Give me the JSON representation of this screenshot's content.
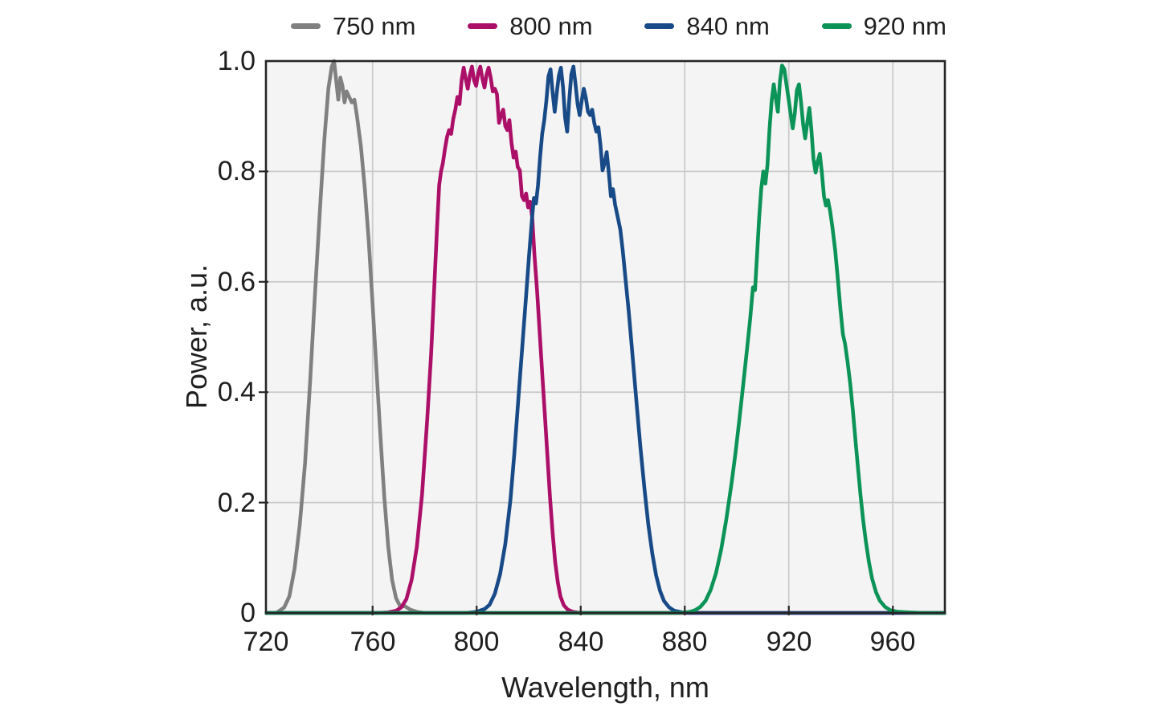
{
  "figure": {
    "background": "#ffffff",
    "text_color": "#1f1f1f"
  },
  "chart_data": {
    "type": "line",
    "title": "",
    "xlabel": "Wavelength, nm",
    "ylabel": "Power, a.u.",
    "xlim": [
      719,
      980
    ],
    "ylim": [
      0,
      1.0
    ],
    "x_ticks": [
      720,
      760,
      800,
      840,
      880,
      920,
      960
    ],
    "x_tick_labels": [
      "720",
      "760",
      "800",
      "840",
      "880",
      "920",
      "960"
    ],
    "y_ticks": [
      1.0,
      0.8,
      0.6,
      0.4,
      0.2,
      0
    ],
    "y_tick_labels": [
      "1.0",
      "0.8",
      "0.6",
      "0.4",
      "0.2",
      "0"
    ],
    "grid": true,
    "legend_position": "top",
    "plot_bg": "#f4f4f4",
    "grid_color": "#cbcbcb",
    "frame_color": "#262626",
    "series": [
      {
        "name": "750 nm",
        "color": "#808080",
        "points": [
          [
            719,
            0
          ],
          [
            723,
            0
          ],
          [
            726,
            0.01
          ],
          [
            728,
            0.03
          ],
          [
            730,
            0.08
          ],
          [
            732,
            0.16
          ],
          [
            734,
            0.27
          ],
          [
            736,
            0.42
          ],
          [
            738,
            0.59
          ],
          [
            740,
            0.75
          ],
          [
            741.5,
            0.86
          ],
          [
            743,
            0.95
          ],
          [
            744.3,
            0.99
          ],
          [
            745.2,
            1.0
          ],
          [
            746,
            0.965
          ],
          [
            746.8,
            0.93
          ],
          [
            747.6,
            0.97
          ],
          [
            748.4,
            0.955
          ],
          [
            749.2,
            0.925
          ],
          [
            750,
            0.945
          ],
          [
            751,
            0.935
          ],
          [
            752,
            0.925
          ],
          [
            753,
            0.93
          ],
          [
            754,
            0.9
          ],
          [
            755.5,
            0.845
          ],
          [
            757,
            0.77
          ],
          [
            758.5,
            0.675
          ],
          [
            760,
            0.56
          ],
          [
            761.5,
            0.44
          ],
          [
            763,
            0.32
          ],
          [
            764.5,
            0.21
          ],
          [
            766,
            0.12
          ],
          [
            767.5,
            0.06
          ],
          [
            769,
            0.027
          ],
          [
            770.5,
            0.013
          ],
          [
            772.5,
            0.012
          ],
          [
            774.5,
            0.006
          ],
          [
            777,
            0.002
          ],
          [
            780,
            0
          ],
          [
            820,
            0
          ],
          [
            860,
            0
          ],
          [
            900,
            0
          ],
          [
            940,
            0
          ],
          [
            980,
            0
          ]
        ]
      },
      {
        "name": "800 nm",
        "color": "#ab0f68",
        "points": [
          [
            719,
            0
          ],
          [
            762,
            0
          ],
          [
            766,
            0.001
          ],
          [
            769,
            0.004
          ],
          [
            771,
            0.01
          ],
          [
            773,
            0.025
          ],
          [
            775,
            0.06
          ],
          [
            777,
            0.12
          ],
          [
            779,
            0.215
          ],
          [
            781,
            0.35
          ],
          [
            782.5,
            0.47
          ],
          [
            783.8,
            0.6
          ],
          [
            784.8,
            0.7
          ],
          [
            785.6,
            0.775
          ],
          [
            786.3,
            0.8
          ],
          [
            787,
            0.815
          ],
          [
            787.8,
            0.84
          ],
          [
            788.6,
            0.862
          ],
          [
            789.4,
            0.875
          ],
          [
            790.2,
            0.868
          ],
          [
            791,
            0.895
          ],
          [
            791.8,
            0.912
          ],
          [
            792.6,
            0.935
          ],
          [
            793.4,
            0.922
          ],
          [
            794.2,
            0.965
          ],
          [
            795,
            0.988
          ],
          [
            795.8,
            0.968
          ],
          [
            796.6,
            0.95
          ],
          [
            797.4,
            0.975
          ],
          [
            798.2,
            0.99
          ],
          [
            799,
            0.965
          ],
          [
            799.8,
            0.955
          ],
          [
            800.6,
            0.978
          ],
          [
            801.4,
            0.99
          ],
          [
            802.2,
            0.968
          ],
          [
            803,
            0.952
          ],
          [
            803.8,
            0.975
          ],
          [
            804.6,
            0.988
          ],
          [
            805.4,
            0.97
          ],
          [
            806.2,
            0.945
          ],
          [
            807,
            0.95
          ],
          [
            807.8,
            0.94
          ],
          [
            808.6,
            0.888
          ],
          [
            809.4,
            0.902
          ],
          [
            810.2,
            0.912
          ],
          [
            811,
            0.882
          ],
          [
            811.8,
            0.875
          ],
          [
            812.6,
            0.893
          ],
          [
            813.4,
            0.852
          ],
          [
            814.2,
            0.825
          ],
          [
            815,
            0.836
          ],
          [
            815.8,
            0.808
          ],
          [
            816.6,
            0.802
          ],
          [
            817.4,
            0.755
          ],
          [
            818.2,
            0.748
          ],
          [
            819,
            0.76
          ],
          [
            819.8,
            0.735
          ],
          [
            820.6,
            0.745
          ],
          [
            821.4,
            0.715
          ],
          [
            822.2,
            0.65
          ],
          [
            823.2,
            0.585
          ],
          [
            824.2,
            0.51
          ],
          [
            825.2,
            0.435
          ],
          [
            826.2,
            0.36
          ],
          [
            827.2,
            0.285
          ],
          [
            828.2,
            0.21
          ],
          [
            829.2,
            0.145
          ],
          [
            830.2,
            0.092
          ],
          [
            831.2,
            0.055
          ],
          [
            832.2,
            0.03
          ],
          [
            833.5,
            0.014
          ],
          [
            835,
            0.006
          ],
          [
            837,
            0.002
          ],
          [
            840,
            0
          ],
          [
            880,
            0
          ],
          [
            920,
            0
          ],
          [
            980,
            0
          ]
        ]
      },
      {
        "name": "840 nm",
        "color": "#184a87",
        "points": [
          [
            719,
            0
          ],
          [
            796,
            0
          ],
          [
            800,
            0.002
          ],
          [
            803,
            0.007
          ],
          [
            805,
            0.015
          ],
          [
            807,
            0.035
          ],
          [
            809,
            0.07
          ],
          [
            811,
            0.125
          ],
          [
            813,
            0.205
          ],
          [
            814.5,
            0.29
          ],
          [
            816,
            0.385
          ],
          [
            817.5,
            0.48
          ],
          [
            819,
            0.575
          ],
          [
            820.2,
            0.65
          ],
          [
            821.2,
            0.71
          ],
          [
            822,
            0.752
          ],
          [
            822.8,
            0.742
          ],
          [
            823.6,
            0.775
          ],
          [
            824.4,
            0.826
          ],
          [
            825.2,
            0.868
          ],
          [
            826,
            0.893
          ],
          [
            826.8,
            0.928
          ],
          [
            827.6,
            0.972
          ],
          [
            828.4,
            0.985
          ],
          [
            829.2,
            0.943
          ],
          [
            830,
            0.908
          ],
          [
            830.8,
            0.943
          ],
          [
            831.6,
            0.973
          ],
          [
            832.4,
            0.988
          ],
          [
            833.2,
            0.953
          ],
          [
            834,
            0.898
          ],
          [
            834.8,
            0.872
          ],
          [
            835.6,
            0.93
          ],
          [
            836.4,
            0.976
          ],
          [
            837.2,
            0.99
          ],
          [
            838,
            0.958
          ],
          [
            838.8,
            0.922
          ],
          [
            839.6,
            0.902
          ],
          [
            840.4,
            0.928
          ],
          [
            841.2,
            0.95
          ],
          [
            842,
            0.933
          ],
          [
            842.8,
            0.908
          ],
          [
            843.6,
            0.902
          ],
          [
            844.4,
            0.912
          ],
          [
            845.2,
            0.888
          ],
          [
            846,
            0.872
          ],
          [
            846.8,
            0.88
          ],
          [
            847.6,
            0.848
          ],
          [
            848.4,
            0.802
          ],
          [
            849.2,
            0.815
          ],
          [
            850,
            0.835
          ],
          [
            850.8,
            0.798
          ],
          [
            851.6,
            0.755
          ],
          [
            852.4,
            0.768
          ],
          [
            853.2,
            0.74
          ],
          [
            854.2,
            0.718
          ],
          [
            855.2,
            0.695
          ],
          [
            856.2,
            0.655
          ],
          [
            857.2,
            0.607
          ],
          [
            858.5,
            0.545
          ],
          [
            860,
            0.462
          ],
          [
            861.5,
            0.378
          ],
          [
            863,
            0.298
          ],
          [
            864.5,
            0.225
          ],
          [
            866,
            0.16
          ],
          [
            867.5,
            0.108
          ],
          [
            869,
            0.068
          ],
          [
            870.5,
            0.04
          ],
          [
            872,
            0.022
          ],
          [
            874,
            0.01
          ],
          [
            876,
            0.004
          ],
          [
            879,
            0.001
          ],
          [
            882,
            0
          ],
          [
            930,
            0
          ],
          [
            980,
            0
          ]
        ]
      },
      {
        "name": "920 nm",
        "color": "#0c9357",
        "points": [
          [
            719,
            0
          ],
          [
            780,
            0
          ],
          [
            830,
            0
          ],
          [
            878,
            0
          ],
          [
            882,
            0.002
          ],
          [
            884,
            0.005
          ],
          [
            886,
            0.011
          ],
          [
            888,
            0.022
          ],
          [
            890,
            0.042
          ],
          [
            892,
            0.072
          ],
          [
            894,
            0.115
          ],
          [
            896,
            0.17
          ],
          [
            898,
            0.235
          ],
          [
            899.5,
            0.29
          ],
          [
            901,
            0.35
          ],
          [
            902.5,
            0.415
          ],
          [
            904,
            0.48
          ],
          [
            905.2,
            0.535
          ],
          [
            906.2,
            0.59
          ],
          [
            907,
            0.585
          ],
          [
            907.8,
            0.648
          ],
          [
            908.6,
            0.715
          ],
          [
            909.4,
            0.768
          ],
          [
            910.2,
            0.8
          ],
          [
            911,
            0.778
          ],
          [
            911.8,
            0.812
          ],
          [
            912.6,
            0.878
          ],
          [
            913.4,
            0.928
          ],
          [
            914.2,
            0.958
          ],
          [
            915,
            0.932
          ],
          [
            915.8,
            0.908
          ],
          [
            916.6,
            0.963
          ],
          [
            917.4,
            0.992
          ],
          [
            918.3,
            0.985
          ],
          [
            919.1,
            0.958
          ],
          [
            919.9,
            0.932
          ],
          [
            920.7,
            0.905
          ],
          [
            921.5,
            0.878
          ],
          [
            922.3,
            0.905
          ],
          [
            923.1,
            0.947
          ],
          [
            923.9,
            0.958
          ],
          [
            924.7,
            0.925
          ],
          [
            925.5,
            0.885
          ],
          [
            926.3,
            0.86
          ],
          [
            927.1,
            0.888
          ],
          [
            927.9,
            0.915
          ],
          [
            928.7,
            0.875
          ],
          [
            929.5,
            0.822
          ],
          [
            930.3,
            0.798
          ],
          [
            931.1,
            0.818
          ],
          [
            931.9,
            0.832
          ],
          [
            932.7,
            0.798
          ],
          [
            933.5,
            0.755
          ],
          [
            934.3,
            0.738
          ],
          [
            935.1,
            0.748
          ],
          [
            935.9,
            0.728
          ],
          [
            936.8,
            0.698
          ],
          [
            937.8,
            0.658
          ],
          [
            938.8,
            0.608
          ],
          [
            939.8,
            0.552
          ],
          [
            940.8,
            0.505
          ],
          [
            941.6,
            0.488
          ],
          [
            942.6,
            0.455
          ],
          [
            943.6,
            0.415
          ],
          [
            944.6,
            0.368
          ],
          [
            945.6,
            0.315
          ],
          [
            946.6,
            0.262
          ],
          [
            947.6,
            0.212
          ],
          [
            948.6,
            0.168
          ],
          [
            949.6,
            0.13
          ],
          [
            950.8,
            0.092
          ],
          [
            952,
            0.063
          ],
          [
            953.5,
            0.038
          ],
          [
            955,
            0.022
          ],
          [
            957,
            0.011
          ],
          [
            959,
            0.005
          ],
          [
            962,
            0.002
          ],
          [
            966,
            0.001
          ],
          [
            972,
            0
          ],
          [
            980,
            0
          ]
        ]
      }
    ]
  }
}
